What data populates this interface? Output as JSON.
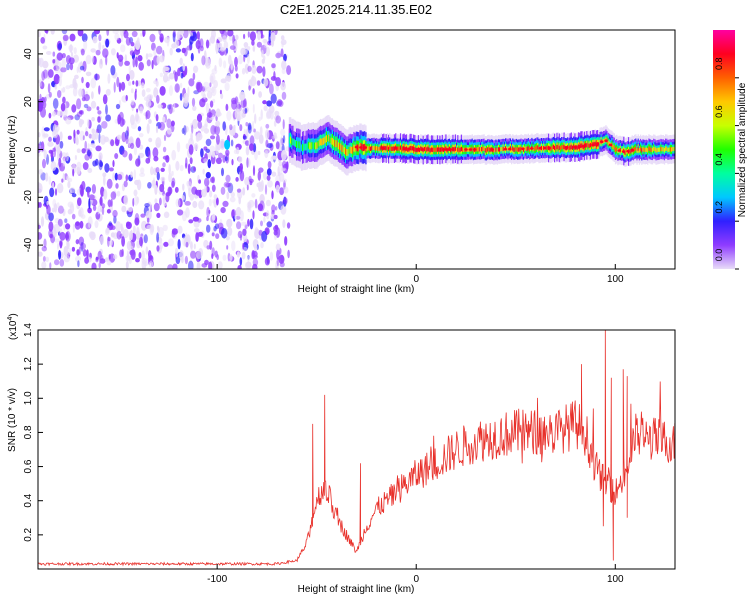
{
  "title": "C2E1.2025.214.11.35.E02",
  "colors": {
    "snr_line": "#e8302a",
    "axis": "#000000"
  },
  "chart_data": [
    {
      "type": "heatmap",
      "xlabel": "Height of straight line (km)",
      "ylabel": "Frequency (Hz)",
      "xlim": [
        -190,
        130
      ],
      "ylim": [
        -50,
        50
      ],
      "xticks": [
        -100,
        0,
        100
      ],
      "yticks": [
        -40,
        -20,
        0,
        20,
        40
      ],
      "colorbar": {
        "label": "Normalized spectral amplitude",
        "range": [
          0,
          1
        ],
        "ticks": [
          "0.0",
          "0.2",
          "0.4",
          "0.6",
          "0.8"
        ],
        "colormap": [
          "#e8dcf8",
          "#8f3cff",
          "#3020ff",
          "#00c8ff",
          "#00ffa0",
          "#20ff00",
          "#c8ff00",
          "#ffc800",
          "#ff6000",
          "#ff0020",
          "#ff00a0"
        ]
      },
      "noise_region_x": [
        -190,
        -64
      ],
      "ridge": [
        {
          "x": -64,
          "f": 4,
          "amp": 0.4
        },
        {
          "x": -58,
          "f": 1,
          "amp": 0.35
        },
        {
          "x": -50,
          "f": 2,
          "amp": 0.45
        },
        {
          "x": -45,
          "f": 5,
          "amp": 0.5
        },
        {
          "x": -40,
          "f": 2,
          "amp": 0.55
        },
        {
          "x": -35,
          "f": -1,
          "amp": 0.5
        },
        {
          "x": -30,
          "f": 1,
          "amp": 0.6
        },
        {
          "x": -20,
          "f": 0.5,
          "amp": 0.65
        },
        {
          "x": -10,
          "f": 0.5,
          "amp": 0.75
        },
        {
          "x": 0,
          "f": 0,
          "amp": 0.8
        },
        {
          "x": 20,
          "f": 0,
          "amp": 0.7
        },
        {
          "x": 40,
          "f": 0,
          "amp": 0.6
        },
        {
          "x": 60,
          "f": 0.5,
          "amp": 0.6
        },
        {
          "x": 80,
          "f": 1,
          "amp": 0.8
        },
        {
          "x": 90,
          "f": 2,
          "amp": 0.8
        },
        {
          "x": 95,
          "f": 4,
          "amp": 0.5
        },
        {
          "x": 100,
          "f": 0,
          "amp": 0.55
        },
        {
          "x": 105,
          "f": -1,
          "amp": 0.7
        },
        {
          "x": 110,
          "f": 0,
          "amp": 0.6
        },
        {
          "x": 130,
          "f": 0,
          "amp": 0.5
        }
      ]
    },
    {
      "type": "line",
      "xlabel": "Height of straight line (km)",
      "ylabel": "SNR (10 * v/v)",
      "yscale_label": "(x10",
      "yscale_exp": "4",
      "yscale_close": ")",
      "xlim": [
        -190,
        130
      ],
      "ylim": [
        0,
        1.4
      ],
      "xticks": [
        -100,
        0,
        100
      ],
      "yticks": [
        "0.2",
        "0.4",
        "0.6",
        "0.8",
        "1.0",
        "1.2",
        "1.4"
      ],
      "series": [
        {
          "color": "#e8302a",
          "envelope": [
            {
              "x": -190,
              "y": 0.03
            },
            {
              "x": -70,
              "y": 0.03
            },
            {
              "x": -60,
              "y": 0.05
            },
            {
              "x": -55,
              "y": 0.15
            },
            {
              "x": -50,
              "y": 0.4
            },
            {
              "x": -46,
              "y": 0.5
            },
            {
              "x": -40,
              "y": 0.3
            },
            {
              "x": -35,
              "y": 0.2
            },
            {
              "x": -30,
              "y": 0.1
            },
            {
              "x": -25,
              "y": 0.25
            },
            {
              "x": -20,
              "y": 0.35
            },
            {
              "x": -10,
              "y": 0.45
            },
            {
              "x": 0,
              "y": 0.55
            },
            {
              "x": 10,
              "y": 0.62
            },
            {
              "x": 20,
              "y": 0.7
            },
            {
              "x": 30,
              "y": 0.75
            },
            {
              "x": 40,
              "y": 0.78
            },
            {
              "x": 50,
              "y": 0.8
            },
            {
              "x": 60,
              "y": 0.8
            },
            {
              "x": 70,
              "y": 0.8
            },
            {
              "x": 80,
              "y": 0.85
            },
            {
              "x": 85,
              "y": 0.8
            },
            {
              "x": 90,
              "y": 0.6
            },
            {
              "x": 95,
              "y": 0.5
            },
            {
              "x": 100,
              "y": 0.45
            },
            {
              "x": 105,
              "y": 0.55
            },
            {
              "x": 110,
              "y": 0.78
            },
            {
              "x": 120,
              "y": 0.76
            },
            {
              "x": 130,
              "y": 0.74
            }
          ],
          "peaks": [
            {
              "x": -46,
              "y": 1.02
            },
            {
              "x": -52,
              "y": 0.85
            },
            {
              "x": -28,
              "y": 0.62
            },
            {
              "x": 83,
              "y": 1.2
            },
            {
              "x": 95,
              "y": 1.4
            },
            {
              "x": 98,
              "y": 1.12
            },
            {
              "x": 104,
              "y": 1.17
            },
            {
              "x": 106,
              "y": 1.13
            },
            {
              "x": 99,
              "y": 0.05
            },
            {
              "x": 94,
              "y": 0.25
            },
            {
              "x": 106,
              "y": 0.3
            }
          ]
        }
      ]
    }
  ]
}
